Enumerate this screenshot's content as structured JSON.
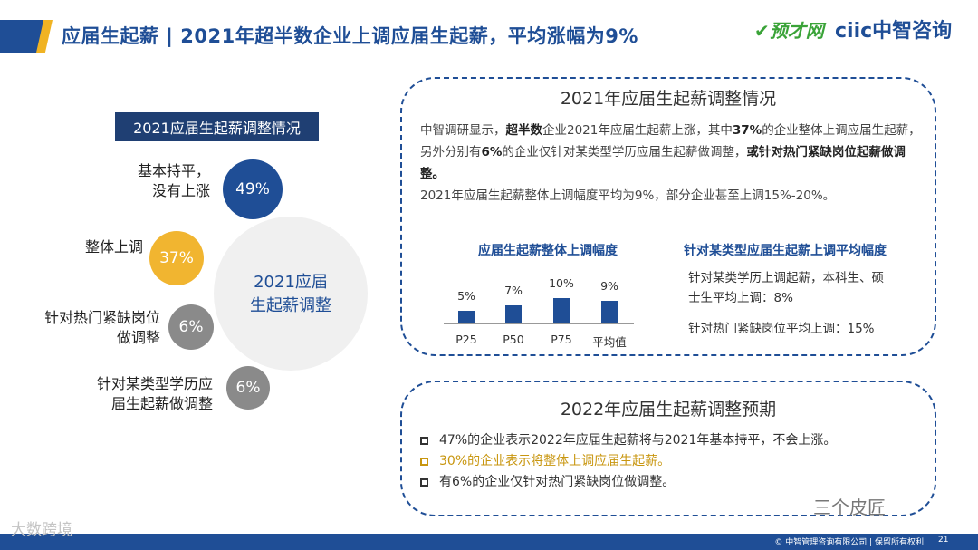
{
  "header": {
    "title": "应届生起薪 | 2021年超半数企业上调应届生起薪，平均涨幅为9%",
    "logo_left": "✔预才网",
    "logo_right": "ciic中智咨询"
  },
  "left_panel": {
    "title": "2021应届生起薪调整情况",
    "center": [
      "2021应届",
      "生起薪调整"
    ],
    "items": [
      {
        "label": [
          "基本持平，",
          "没有上涨"
        ],
        "value": "49%",
        "color": "#1f4e96"
      },
      {
        "label": [
          "整体上调"
        ],
        "value": "37%",
        "color": "#f1b530"
      },
      {
        "label": [
          "针对热门紧缺岗位",
          "做调整"
        ],
        "value": "6%",
        "color": "#8a8a8a"
      },
      {
        "label": [
          "针对某类型学历应",
          "届生起薪做调整"
        ],
        "value": "6%",
        "color": "#8a8a8a"
      }
    ]
  },
  "box1": {
    "title": "2021年应届生起薪调整情况",
    "para": {
      "s1": "中智调研显示，",
      "s2": "超半数",
      "s3": "企业2021年应届生起薪上涨，其中",
      "s4": "37%",
      "s5": "的企业整体上调应届生起薪，另外分别有",
      "s6": "6%",
      "s7": "的企业仅针对某类型学历应届生起薪做调整，",
      "s8": "或针对热门紧缺岗位起薪做调整。",
      "s9": "2021年应届生起薪整体上调幅度平均为9%，部分企业甚至上调15%-20%。"
    },
    "right_title": "针对某类型应届生起薪上调平均幅度",
    "right_item1": [
      "针对某类学历上调起薪，本科生、硕",
      "士生平均上调：8%"
    ],
    "right_item2": "针对热门紧缺岗位平均上调：15%"
  },
  "chart_data": {
    "type": "bar",
    "title": "应届生起薪整体上调幅度",
    "categories": [
      "P25",
      "P50",
      "P75",
      "平均值"
    ],
    "values": [
      5,
      7,
      10,
      9
    ],
    "value_labels": [
      "5%",
      "7%",
      "10%",
      "9%"
    ],
    "unit": "%",
    "bar_color": "#1f4e96",
    "ylim": [
      0,
      10
    ],
    "grid": false
  },
  "box2": {
    "title": "2022年应届生起薪调整预期",
    "bullets": [
      {
        "text": "47%的企业表示2022年应届生起薪将与2021年基本持平，不会上涨。",
        "color": "#333333"
      },
      {
        "text": "30%的企业表示将整体上调应届生起薪。",
        "color": "#c8960f"
      },
      {
        "text": "有6%的企业仅针对热门紧缺岗位做调整。",
        "color": "#333333"
      }
    ]
  },
  "footer": {
    "copyright": "© 中智管理咨询有限公司 | 保留所有权利",
    "page": "21"
  },
  "watermarks": {
    "left": "大数跨境",
    "right": "三个皮匠"
  }
}
